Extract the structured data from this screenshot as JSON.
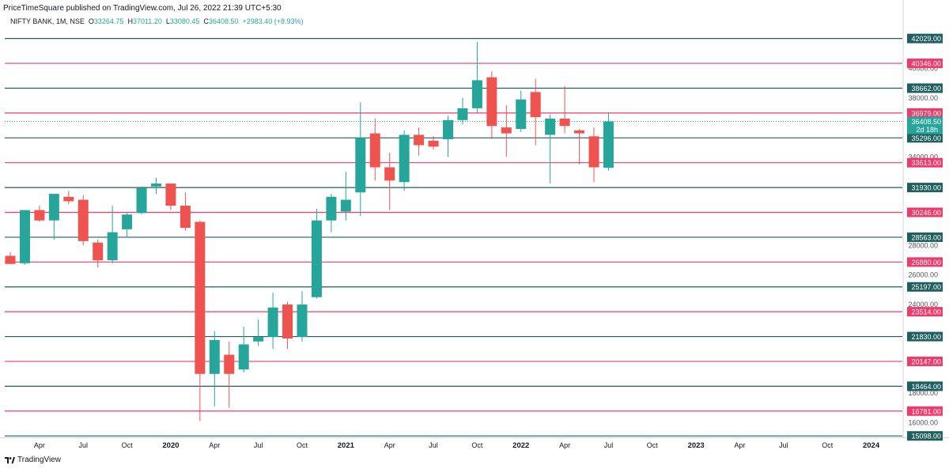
{
  "header": {
    "published": "PriceTimeSquare published on TradingView.com, Jul 26, 2022 21:39 UTC+5:30",
    "symbol": "NIFTY BANK, 1M, NSE",
    "o_label": "O",
    "o": "33264.75",
    "h_label": "H",
    "h": "37011.20",
    "l_label": "L",
    "l": "33080.45",
    "c_label": "C",
    "c": "36408.50",
    "change": "+2983.40 (+8.93%)"
  },
  "footer": {
    "brand": "TradingView",
    "logo_icon": "tradingview-logo-icon"
  },
  "colors": {
    "up": "#26a69a",
    "down": "#ef5350",
    "teal_line": "#1f5f5f",
    "red_line": "#ef3b6b",
    "axis_text": "#131722"
  },
  "chart_data": {
    "type": "candlestick",
    "title": "NIFTY BANK, 1M, NSE",
    "ylim": [
      15000,
      42600
    ],
    "price_ticks": [
      "16000.00",
      "18000.00",
      "24000.00",
      "26000.00",
      "28000.00",
      "34000.00",
      "38000.00",
      "40000.00"
    ],
    "x_ticks": [
      "Apr",
      "Jul",
      "Oct",
      "2020",
      "Apr",
      "Jul",
      "Oct",
      "2021",
      "Apr",
      "Jul",
      "Oct",
      "2022",
      "Apr",
      "Jul",
      "Oct",
      "2023",
      "Apr",
      "Jul",
      "Oct",
      "2024"
    ],
    "levels": [
      {
        "value": 42029,
        "label": "42029.00",
        "color": "teal"
      },
      {
        "value": 40346,
        "label": "40346.00",
        "color": "red"
      },
      {
        "value": 38662,
        "label": "38662.00",
        "color": "teal"
      },
      {
        "value": 36979,
        "label": "36979.00",
        "color": "red"
      },
      {
        "value": 35296,
        "label": "35296.00",
        "color": "teal"
      },
      {
        "value": 33613,
        "label": "33613.00",
        "color": "red"
      },
      {
        "value": 31930,
        "label": "31930.00",
        "color": "teal"
      },
      {
        "value": 30246,
        "label": "30246.00",
        "color": "red"
      },
      {
        "value": 28563,
        "label": "28563.00",
        "color": "teal"
      },
      {
        "value": 26880,
        "label": "26880.00",
        "color": "red"
      },
      {
        "value": 25197,
        "label": "25197.00",
        "color": "teal"
      },
      {
        "value": 23514,
        "label": "23514.00",
        "color": "red"
      },
      {
        "value": 21830,
        "label": "21830.00",
        "color": "teal"
      },
      {
        "value": 20147,
        "label": "20147.00",
        "color": "red"
      },
      {
        "value": 18464,
        "label": "18464.00",
        "color": "teal"
      },
      {
        "value": 16781,
        "label": "16781.00",
        "color": "red"
      },
      {
        "value": 15098,
        "label": "15098.00",
        "color": "teal"
      }
    ],
    "last_price": {
      "value": 36408.5,
      "label": "36408.50",
      "countdown": "2d 18h"
    },
    "candles": [
      {
        "t": "2019-02",
        "o": 27300,
        "h": 27550,
        "l": 26750,
        "c": 26750
      },
      {
        "t": "2019-03",
        "o": 26800,
        "h": 30400,
        "l": 26700,
        "c": 30400
      },
      {
        "t": "2019-04",
        "o": 30400,
        "h": 30700,
        "l": 29600,
        "c": 29700
      },
      {
        "t": "2019-05",
        "o": 29700,
        "h": 31500,
        "l": 28400,
        "c": 31500
      },
      {
        "t": "2019-06",
        "o": 31300,
        "h": 31700,
        "l": 30800,
        "c": 31000
      },
      {
        "t": "2019-07",
        "o": 31100,
        "h": 31400,
        "l": 28000,
        "c": 28300
      },
      {
        "t": "2019-08",
        "o": 28200,
        "h": 28400,
        "l": 26500,
        "c": 27000
      },
      {
        "t": "2019-09",
        "o": 27000,
        "h": 30700,
        "l": 26800,
        "c": 28900
      },
      {
        "t": "2019-10",
        "o": 29100,
        "h": 30200,
        "l": 28600,
        "c": 30100
      },
      {
        "t": "2019-11",
        "o": 30200,
        "h": 32000,
        "l": 30100,
        "c": 31900
      },
      {
        "t": "2019-12",
        "o": 32000,
        "h": 32600,
        "l": 31500,
        "c": 32200
      },
      {
        "t": "2020-01",
        "o": 32200,
        "h": 32100,
        "l": 30400,
        "c": 30700
      },
      {
        "t": "2020-02",
        "o": 30700,
        "h": 31600,
        "l": 29000,
        "c": 29200
      },
      {
        "t": "2020-03",
        "o": 29600,
        "h": 29700,
        "l": 16100,
        "c": 19300
      },
      {
        "t": "2020-04",
        "o": 19300,
        "h": 22200,
        "l": 17100,
        "c": 21600
      },
      {
        "t": "2020-05",
        "o": 20600,
        "h": 21500,
        "l": 17000,
        "c": 19300
      },
      {
        "t": "2020-06",
        "o": 19600,
        "h": 22500,
        "l": 19400,
        "c": 21300
      },
      {
        "t": "2020-07",
        "o": 21500,
        "h": 23000,
        "l": 21200,
        "c": 21800
      },
      {
        "t": "2020-08",
        "o": 21800,
        "h": 24800,
        "l": 21000,
        "c": 23800
      },
      {
        "t": "2020-09",
        "o": 24000,
        "h": 24200,
        "l": 21000,
        "c": 21700
      },
      {
        "t": "2020-10",
        "o": 21800,
        "h": 24900,
        "l": 21500,
        "c": 24000
      },
      {
        "t": "2020-11",
        "o": 24500,
        "h": 30500,
        "l": 24400,
        "c": 29700
      },
      {
        "t": "2020-12",
        "o": 29700,
        "h": 31500,
        "l": 28900,
        "c": 31300
      },
      {
        "t": "2021-01",
        "o": 30300,
        "h": 33000,
        "l": 29700,
        "c": 31100
      },
      {
        "t": "2021-02",
        "o": 31600,
        "h": 37700,
        "l": 30000,
        "c": 35300
      },
      {
        "t": "2021-03",
        "o": 35600,
        "h": 36600,
        "l": 32400,
        "c": 33300
      },
      {
        "t": "2021-04",
        "o": 33300,
        "h": 34300,
        "l": 30400,
        "c": 32400
      },
      {
        "t": "2021-05",
        "o": 32300,
        "h": 35800,
        "l": 31700,
        "c": 35500
      },
      {
        "t": "2021-06",
        "o": 35500,
        "h": 36000,
        "l": 34100,
        "c": 34800
      },
      {
        "t": "2021-07",
        "o": 35100,
        "h": 35400,
        "l": 34500,
        "c": 34700
      },
      {
        "t": "2021-08",
        "o": 35200,
        "h": 36800,
        "l": 34000,
        "c": 36500
      },
      {
        "t": "2021-09",
        "o": 36500,
        "h": 38000,
        "l": 36200,
        "c": 37300
      },
      {
        "t": "2021-10",
        "o": 37300,
        "h": 41800,
        "l": 37000,
        "c": 39200
      },
      {
        "t": "2021-11",
        "o": 39400,
        "h": 39800,
        "l": 35200,
        "c": 36100
      },
      {
        "t": "2021-12",
        "o": 36000,
        "h": 37500,
        "l": 34000,
        "c": 35600
      },
      {
        "t": "2022-01",
        "o": 35900,
        "h": 38500,
        "l": 35700,
        "c": 37900
      },
      {
        "t": "2022-02",
        "o": 38400,
        "h": 39300,
        "l": 34800,
        "c": 36700
      },
      {
        "t": "2022-03",
        "o": 35500,
        "h": 36900,
        "l": 32200,
        "c": 36600
      },
      {
        "t": "2022-04",
        "o": 36600,
        "h": 38800,
        "l": 35600,
        "c": 36100
      },
      {
        "t": "2022-05",
        "o": 35800,
        "h": 35900,
        "l": 33500,
        "c": 35600
      },
      {
        "t": "2022-06",
        "o": 35400,
        "h": 36000,
        "l": 32300,
        "c": 33300
      },
      {
        "t": "2022-07",
        "o": 33265,
        "h": 37011,
        "l": 33080,
        "c": 36408
      }
    ]
  }
}
